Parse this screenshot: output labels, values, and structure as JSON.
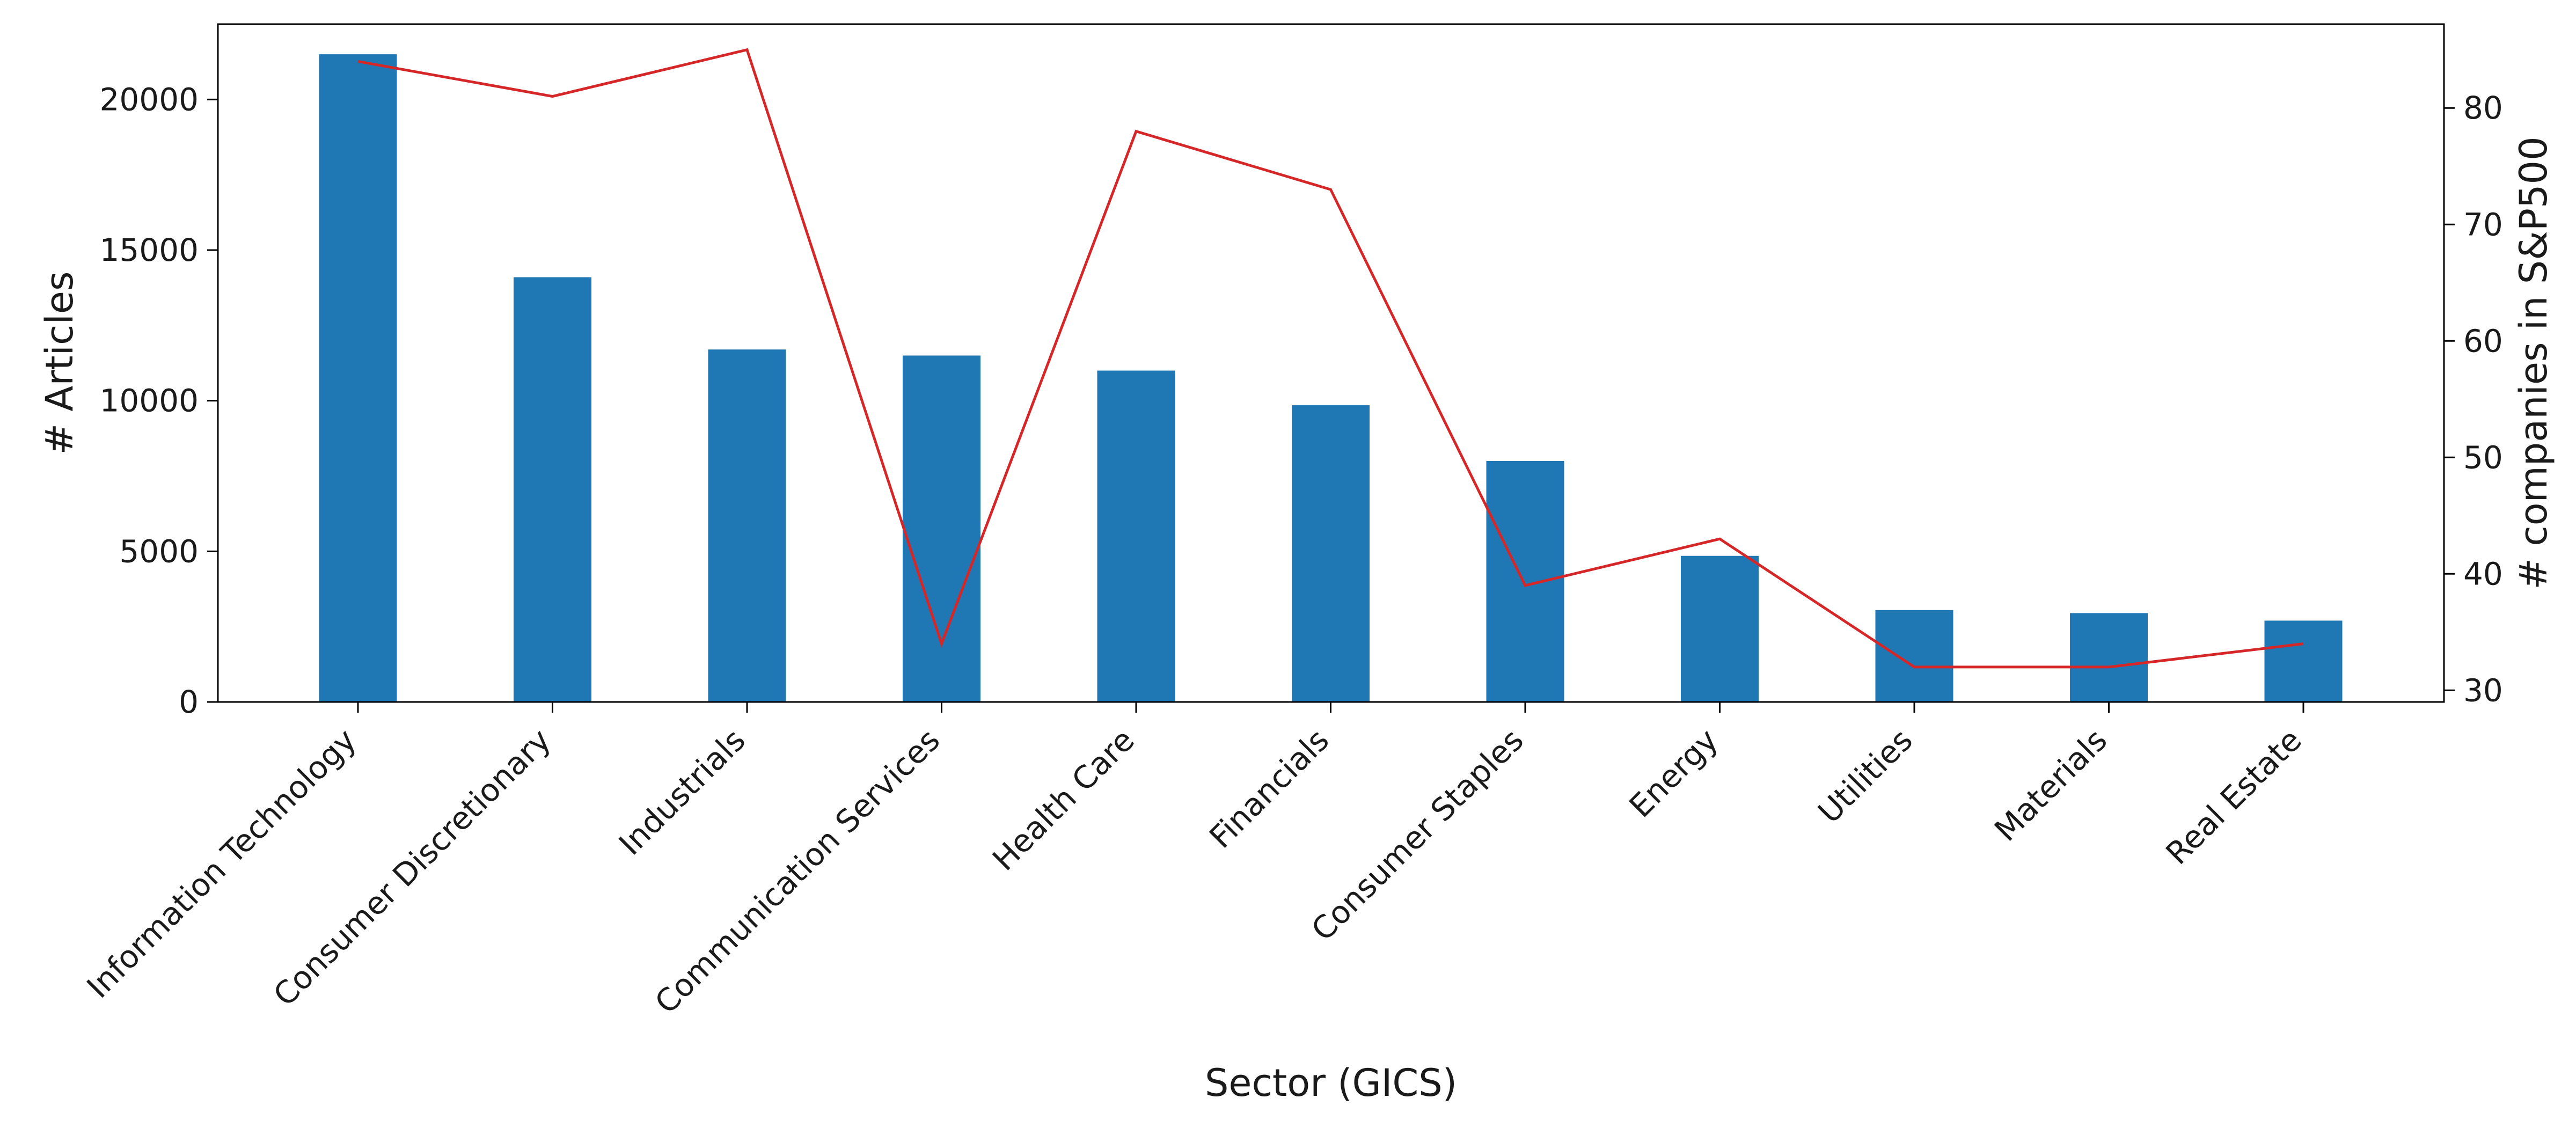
{
  "chart_data": {
    "type": "bar+line",
    "categories": [
      "Information Technology",
      "Consumer Discretionary",
      "Industrials",
      "Communication Services",
      "Health Care",
      "Financials",
      "Consumer Staples",
      "Energy",
      "Utilities",
      "Materials",
      "Real Estate"
    ],
    "series": [
      {
        "name": "# Articles",
        "type": "bar",
        "axis": "left",
        "color": "#1f77b4",
        "values": [
          21500,
          14100,
          11700,
          11500,
          11000,
          9850,
          8000,
          4850,
          3050,
          2950,
          2700
        ]
      },
      {
        "name": "# companies in S&P500",
        "type": "line",
        "axis": "right",
        "color": "#d62728",
        "values": [
          84,
          81,
          85,
          34,
          78,
          73,
          39,
          43,
          32,
          32,
          34
        ]
      }
    ],
    "xlabel": "Sector (GICS)",
    "ylabel": "# Articles",
    "y2label": "# companies in S&P500",
    "ylim": [
      0,
      22500
    ],
    "y2lim": [
      29,
      87.2
    ],
    "yticks": [
      0,
      5000,
      10000,
      15000,
      20000
    ],
    "y2ticks": [
      30,
      40,
      50,
      60,
      70,
      80
    ],
    "grid": false
  }
}
